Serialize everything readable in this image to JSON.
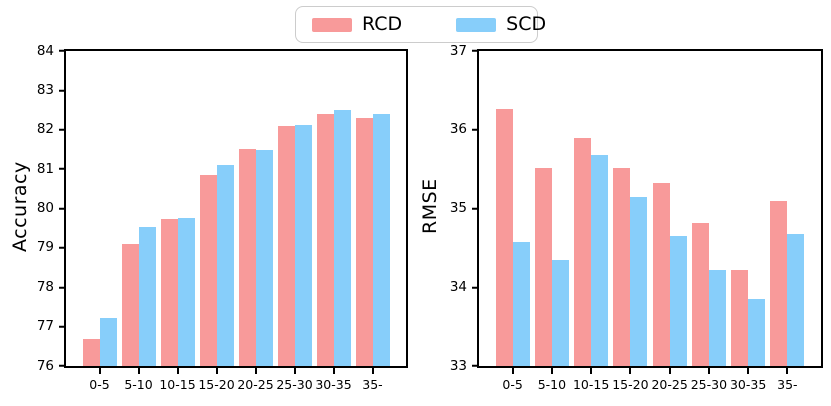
{
  "legend": {
    "items": [
      {
        "label": "RCD",
        "color": "#f89a9a"
      },
      {
        "label": "SCD",
        "color": "#87cefa"
      }
    ]
  },
  "colors": {
    "rcd": "#f89a9a",
    "scd": "#87cefa",
    "axis": "#000000",
    "legend_border": "#cccccc",
    "background": "#ffffff"
  },
  "chart_data": [
    {
      "type": "bar",
      "title": "",
      "xlabel": "",
      "ylabel": "Accuracy",
      "categories": [
        "0-5",
        "5-10",
        "10-15",
        "15-20",
        "20-25",
        "25-30",
        "30-35",
        "35-"
      ],
      "series": [
        {
          "name": "RCD",
          "color": "#f89a9a",
          "values": [
            76.68,
            79.1,
            79.74,
            80.85,
            81.5,
            82.1,
            82.4,
            82.29
          ]
        },
        {
          "name": "SCD",
          "color": "#87cefa",
          "values": [
            77.22,
            79.53,
            79.77,
            81.1,
            81.48,
            82.13,
            82.5,
            82.4
          ]
        }
      ],
      "ylim": [
        76,
        84
      ],
      "yticks": [
        76,
        77,
        78,
        79,
        80,
        81,
        82,
        83,
        84
      ],
      "grid": false,
      "legend_position": "top-center-of-figure"
    },
    {
      "type": "bar",
      "title": "",
      "xlabel": "",
      "ylabel": "RMSE",
      "categories": [
        "0-5",
        "5-10",
        "10-15",
        "15-20",
        "20-25",
        "25-30",
        "30-35",
        "35-"
      ],
      "series": [
        {
          "name": "RCD",
          "color": "#f89a9a",
          "values": [
            36.26,
            35.51,
            35.9,
            35.52,
            35.33,
            34.81,
            34.22,
            35.1
          ]
        },
        {
          "name": "SCD",
          "color": "#87cefa",
          "values": [
            34.58,
            34.35,
            35.68,
            35.15,
            34.65,
            34.22,
            33.85,
            34.68
          ]
        }
      ],
      "ylim": [
        33,
        37
      ],
      "yticks": [
        33,
        34,
        35,
        36,
        37
      ],
      "grid": false,
      "legend_position": "top-center-of-figure"
    }
  ]
}
